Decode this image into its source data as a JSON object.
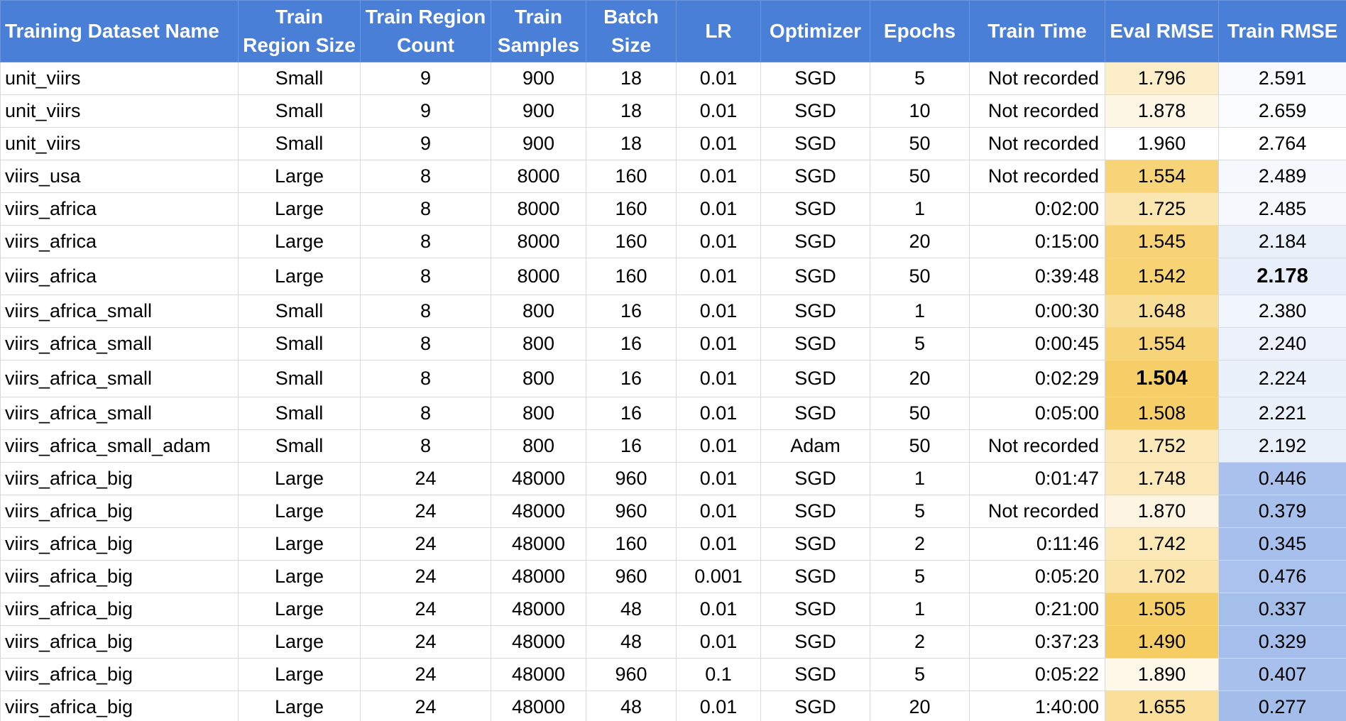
{
  "columns": [
    "Training Dataset Name",
    "Train Region Size",
    "Train Region Count",
    "Train Samples",
    "Batch Size",
    "LR",
    "Optimizer",
    "Epochs",
    "Train Time",
    "Eval RMSE",
    "Train RMSE"
  ],
  "rows": [
    [
      "unit_viirs",
      "Small",
      "9",
      "900",
      "18",
      "0.01",
      "SGD",
      "5",
      "Not recorded",
      "1.796",
      "2.591"
    ],
    [
      "unit_viirs",
      "Small",
      "9",
      "900",
      "18",
      "0.01",
      "SGD",
      "10",
      "Not recorded",
      "1.878",
      "2.659"
    ],
    [
      "unit_viirs",
      "Small",
      "9",
      "900",
      "18",
      "0.01",
      "SGD",
      "50",
      "Not recorded",
      "1.960",
      "2.764"
    ],
    [
      "viirs_usa",
      "Large",
      "8",
      "8000",
      "160",
      "0.01",
      "SGD",
      "50",
      "Not recorded",
      "1.554",
      "2.489"
    ],
    [
      "viirs_africa",
      "Large",
      "8",
      "8000",
      "160",
      "0.01",
      "SGD",
      "1",
      "0:02:00",
      "1.725",
      "2.485"
    ],
    [
      "viirs_africa",
      "Large",
      "8",
      "8000",
      "160",
      "0.01",
      "SGD",
      "20",
      "0:15:00",
      "1.545",
      "2.184"
    ],
    [
      "viirs_africa",
      "Large",
      "8",
      "8000",
      "160",
      "0.01",
      "SGD",
      "50",
      "0:39:48",
      "1.542",
      "2.178"
    ],
    [
      "viirs_africa_small",
      "Small",
      "8",
      "800",
      "16",
      "0.01",
      "SGD",
      "1",
      "0:00:30",
      "1.648",
      "2.380"
    ],
    [
      "viirs_africa_small",
      "Small",
      "8",
      "800",
      "16",
      "0.01",
      "SGD",
      "5",
      "0:00:45",
      "1.554",
      "2.240"
    ],
    [
      "viirs_africa_small",
      "Small",
      "8",
      "800",
      "16",
      "0.01",
      "SGD",
      "20",
      "0:02:29",
      "1.504",
      "2.224"
    ],
    [
      "viirs_africa_small",
      "Small",
      "8",
      "800",
      "16",
      "0.01",
      "SGD",
      "50",
      "0:05:00",
      "1.508",
      "2.221"
    ],
    [
      "viirs_africa_small_adam",
      "Small",
      "8",
      "800",
      "16",
      "0.01",
      "Adam",
      "50",
      "Not recorded",
      "1.752",
      "2.192"
    ],
    [
      "viirs_africa_big",
      "Large",
      "24",
      "48000",
      "960",
      "0.01",
      "SGD",
      "1",
      "0:01:47",
      "1.748",
      "0.446"
    ],
    [
      "viirs_africa_big",
      "Large",
      "24",
      "48000",
      "960",
      "0.01",
      "SGD",
      "5",
      "Not recorded",
      "1.870",
      "0.379"
    ],
    [
      "viirs_africa_big",
      "Large",
      "24",
      "48000",
      "160",
      "0.01",
      "SGD",
      "2",
      "0:11:46",
      "1.742",
      "0.345"
    ],
    [
      "viirs_africa_big",
      "Large",
      "24",
      "48000",
      "960",
      "0.001",
      "SGD",
      "5",
      "0:05:20",
      "1.702",
      "0.476"
    ],
    [
      "viirs_africa_big",
      "Large",
      "24",
      "48000",
      "48",
      "0.01",
      "SGD",
      "1",
      "0:21:00",
      "1.505",
      "0.337"
    ],
    [
      "viirs_africa_big",
      "Large",
      "24",
      "48000",
      "48",
      "0.01",
      "SGD",
      "2",
      "0:37:23",
      "1.490",
      "0.329"
    ],
    [
      "viirs_africa_big",
      "Large",
      "24",
      "48000",
      "960",
      "0.1",
      "SGD",
      "5",
      "0:05:22",
      "1.890",
      "0.407"
    ],
    [
      "viirs_africa_big",
      "Large",
      "24",
      "48000",
      "48",
      "0.01",
      "SGD",
      "20",
      "1:40:00",
      "1.655",
      "0.277"
    ]
  ],
  "bold_cells": [
    {
      "row": 6,
      "col": 10
    },
    {
      "row": 9,
      "col": 9
    }
  ],
  "colors": {
    "header_bg": "#4a7fd8",
    "header_text": "#ffffff",
    "eval_scale_min": "#f6cd63",
    "eval_scale_max": "#ffffff",
    "train_scale_high": "#ffffff",
    "train_scale_low": "#a3bdeb"
  }
}
